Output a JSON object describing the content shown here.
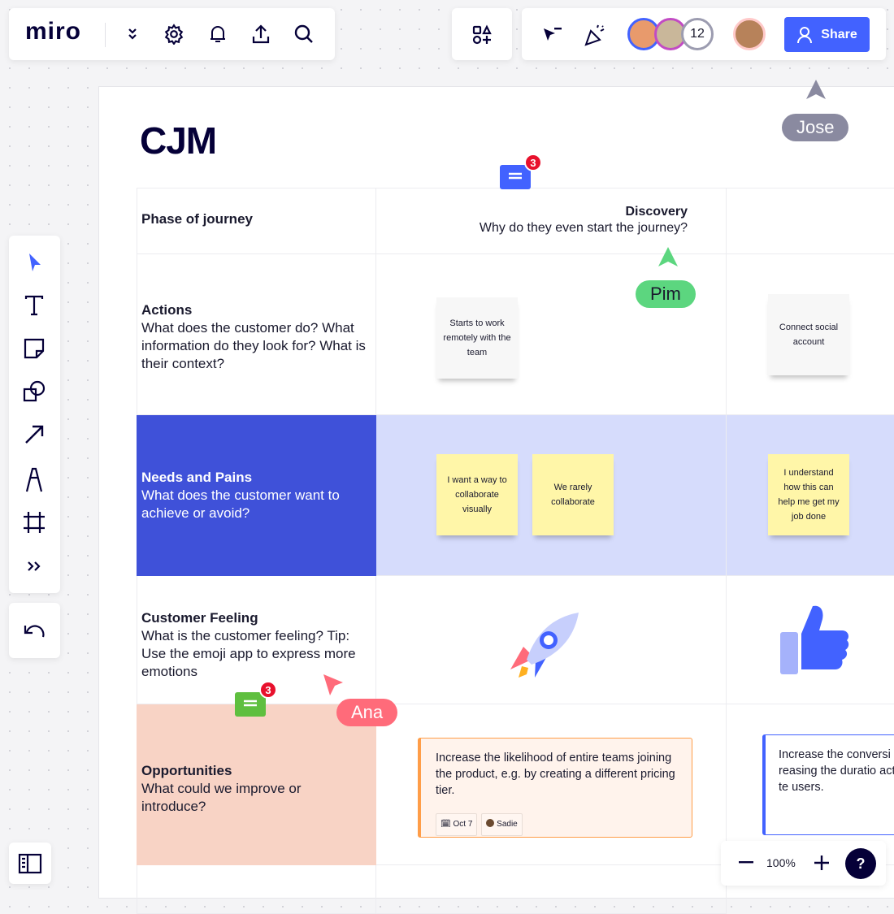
{
  "topbar": {
    "logo": "miro",
    "icons": [
      "chevron-double-down-icon",
      "gear-icon",
      "bell-icon",
      "upload-icon",
      "search-icon"
    ],
    "apps_icon": "shapes-apps-icon",
    "collab_icons": [
      "cursor-filter-icon",
      "party-popper-icon"
    ],
    "avatar_count": "12",
    "share_label": "Share",
    "accent": "#4262ff"
  },
  "board": {
    "title": "CJM",
    "header": {
      "label": "Phase of journey",
      "phase_title": "Discovery",
      "phase_subtitle": "Why do they even start the journey?"
    },
    "rows": [
      {
        "title": "Actions",
        "desc": "What does the customer do? What information do they look for? What is their context?"
      },
      {
        "title": "Needs and Pains",
        "desc": "What does the customer want to achieve or avoid?"
      },
      {
        "title": "Customer Feeling",
        "desc": "What is the customer feeling? Tip: Use the emoji app to express more emotions"
      },
      {
        "title": "Opportunities",
        "desc": "What could we improve or introduce?"
      }
    ],
    "stickies": {
      "actions": [
        "Starts to work remotely with the team",
        "Connect  social account"
      ],
      "needs": [
        "I want a way to collaborate visually",
        "We rarely collaborate",
        "I understand how this can help me get my job done"
      ]
    },
    "feelings": [
      "rocket-icon",
      "thumbs-up-icon"
    ],
    "cards": [
      {
        "text": "Increase the likelihood of entire teams joining the product, e.g. by creating a different pricing tier.",
        "date": "Oct 7",
        "assignee": "Sadie",
        "color": "#ff9d48"
      },
      {
        "text": "Increase the conversi increasing the duratio activate users.",
        "color": "#4262ff"
      }
    ],
    "comments": [
      {
        "count": "3",
        "color": "#4262ff"
      },
      {
        "count": "3",
        "color": "#5fbf3f"
      }
    ]
  },
  "cursors": [
    {
      "name": "Jose",
      "color": "#8a8aa0"
    },
    {
      "name": "Pim",
      "color": "#5cd67f"
    },
    {
      "name": "Ana",
      "color": "#ff6b7a"
    }
  ],
  "toolbar": {
    "tools": [
      "select-icon",
      "text-icon",
      "sticky-note-icon",
      "shapes-icon",
      "arrow-icon",
      "pen-icon",
      "frame-icon",
      "more-icon"
    ],
    "undo": "undo-icon"
  },
  "zoom": {
    "level": "100%",
    "help": "?"
  }
}
